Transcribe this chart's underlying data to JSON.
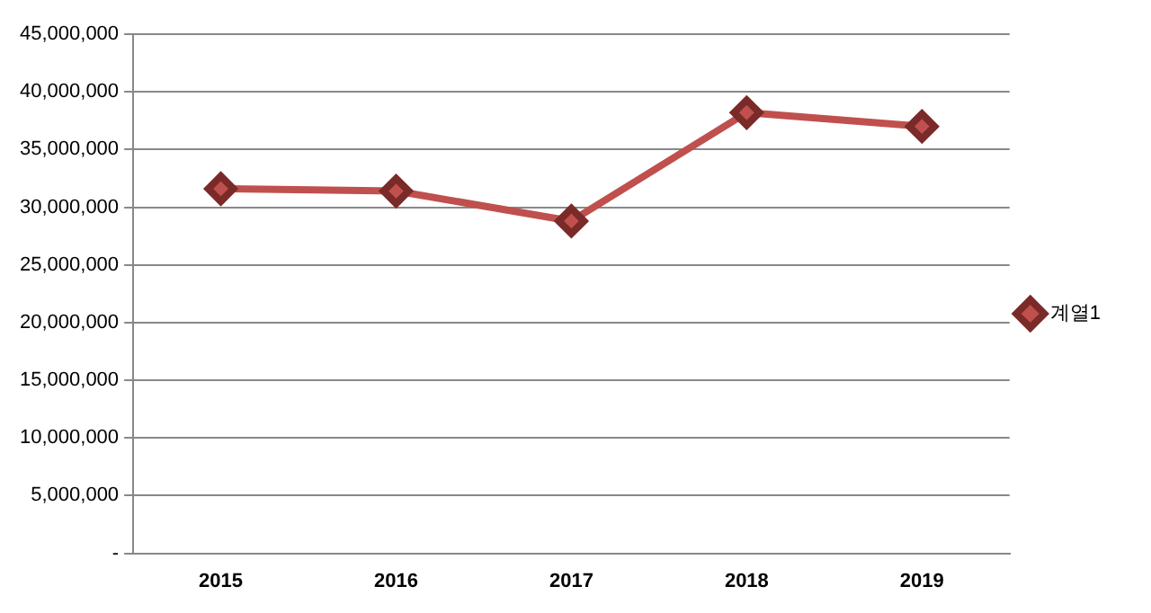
{
  "chart_data": {
    "type": "line",
    "categories": [
      "2015",
      "2016",
      "2017",
      "2018",
      "2019"
    ],
    "series": [
      {
        "name": "계열1",
        "color": "#c0504d",
        "values": [
          31600000,
          31400000,
          28800000,
          38200000,
          37000000
        ]
      }
    ],
    "ylim": [
      0,
      45000000
    ],
    "yticks": [
      {
        "value": 0,
        "label": "-"
      },
      {
        "value": 5000000,
        "label": "5,000,000"
      },
      {
        "value": 10000000,
        "label": "10,000,000"
      },
      {
        "value": 15000000,
        "label": "15,000,000"
      },
      {
        "value": 20000000,
        "label": "20,000,000"
      },
      {
        "value": 25000000,
        "label": "25,000,000"
      },
      {
        "value": 30000000,
        "label": "30,000,000"
      },
      {
        "value": 35000000,
        "label": "35,000,000"
      },
      {
        "value": 40000000,
        "label": "40,000,000"
      },
      {
        "value": 45000000,
        "label": "45,000,000"
      }
    ],
    "grid": "y",
    "legend": "right",
    "marker": "diamond",
    "line_style": "solid"
  }
}
